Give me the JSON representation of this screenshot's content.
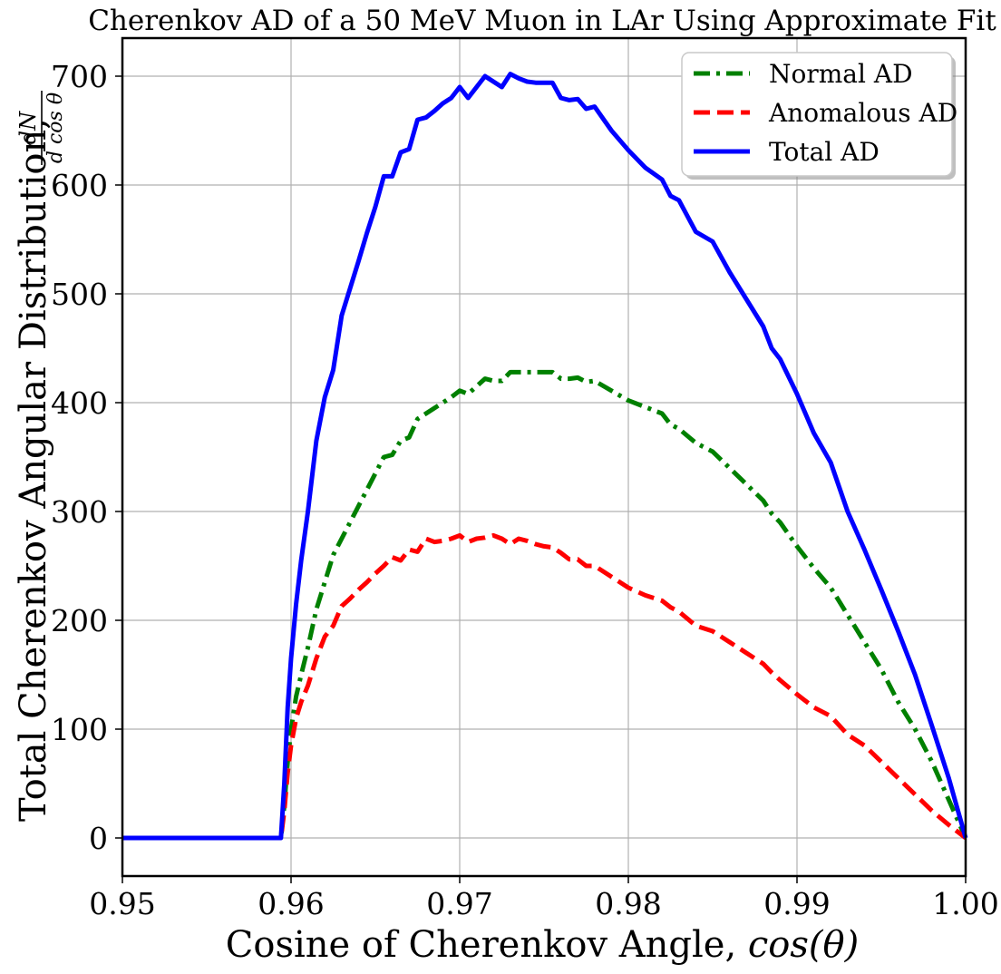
{
  "chart_data": {
    "type": "line",
    "title": "Cherenkov AD of a 50 MeV Muon in LAr Using Approximate Fit",
    "xlabel_text": "Cosine of Cherenkov Angle, ",
    "xlabel_math": "cos(θ)",
    "ylabel_text": "Total Cherenkov Angular Distribution, ",
    "ylabel_frac_num": "dN",
    "ylabel_frac_den": "d cos θ",
    "xlim": [
      0.95,
      1.0
    ],
    "ylim": [
      -35,
      735
    ],
    "xticks": [
      0.95,
      0.96,
      0.97,
      0.98,
      0.99,
      1.0
    ],
    "xtick_labels": [
      "0.95",
      "0.96",
      "0.97",
      "0.98",
      "0.99",
      "1.00"
    ],
    "yticks": [
      0,
      100,
      200,
      300,
      400,
      500,
      600,
      700
    ],
    "ytick_labels": [
      "0",
      "100",
      "200",
      "300",
      "400",
      "500",
      "600",
      "700"
    ],
    "grid": true,
    "legend_position": "top-right",
    "series": [
      {
        "name": "Normal AD",
        "color": "#008000",
        "style": "dashdot",
        "x": [
          0.95,
          0.9594,
          0.9596,
          0.9598,
          0.96,
          0.9603,
          0.9606,
          0.961,
          0.9615,
          0.962,
          0.9625,
          0.963,
          0.9635,
          0.964,
          0.9645,
          0.965,
          0.9655,
          0.966,
          0.9665,
          0.967,
          0.9675,
          0.968,
          0.9685,
          0.969,
          0.9695,
          0.97,
          0.9705,
          0.971,
          0.9715,
          0.972,
          0.9725,
          0.973,
          0.9735,
          0.974,
          0.9745,
          0.975,
          0.9755,
          0.976,
          0.9765,
          0.977,
          0.9775,
          0.978,
          0.979,
          0.98,
          0.981,
          0.982,
          0.9825,
          0.983,
          0.984,
          0.985,
          0.986,
          0.987,
          0.988,
          0.9885,
          0.989,
          0.99,
          0.991,
          0.992,
          0.993,
          0.994,
          0.995,
          0.996,
          0.997,
          0.998,
          0.999,
          1.0
        ],
        "y": [
          0,
          0,
          30,
          70,
          100,
          130,
          150,
          175,
          210,
          235,
          260,
          275,
          290,
          305,
          320,
          335,
          350,
          352,
          365,
          368,
          385,
          390,
          395,
          400,
          405,
          411,
          408,
          415,
          422,
          420,
          420,
          428,
          428,
          428,
          428,
          428,
          428,
          422,
          422,
          423,
          419,
          420,
          411,
          402,
          396,
          390,
          380,
          376,
          363,
          355,
          340,
          325,
          310,
          298,
          290,
          268,
          248,
          230,
          205,
          180,
          155,
          125,
          100,
          70,
          35,
          0
        ]
      },
      {
        "name": "Anomalous AD",
        "color": "#ff0000",
        "style": "dashed",
        "x": [
          0.95,
          0.9594,
          0.9596,
          0.9598,
          0.96,
          0.9603,
          0.9606,
          0.961,
          0.9615,
          0.962,
          0.9625,
          0.963,
          0.9635,
          0.964,
          0.9645,
          0.965,
          0.9655,
          0.966,
          0.9665,
          0.967,
          0.9675,
          0.968,
          0.9685,
          0.969,
          0.9695,
          0.97,
          0.9705,
          0.971,
          0.9715,
          0.972,
          0.9725,
          0.973,
          0.9735,
          0.974,
          0.9745,
          0.975,
          0.9755,
          0.976,
          0.9765,
          0.977,
          0.9775,
          0.978,
          0.979,
          0.98,
          0.981,
          0.982,
          0.9825,
          0.983,
          0.984,
          0.985,
          0.986,
          0.987,
          0.988,
          0.9885,
          0.989,
          0.99,
          0.991,
          0.992,
          0.993,
          0.994,
          0.995,
          0.996,
          0.997,
          0.998,
          0.999,
          1.0
        ],
        "y": [
          0,
          0,
          25,
          60,
          85,
          110,
          125,
          140,
          165,
          185,
          195,
          213,
          220,
          228,
          235,
          243,
          250,
          258,
          255,
          265,
          263,
          275,
          272,
          273,
          275,
          278,
          272,
          275,
          276,
          278,
          275,
          270,
          275,
          273,
          270,
          268,
          267,
          262,
          256,
          256,
          250,
          250,
          240,
          230,
          223,
          218,
          212,
          208,
          195,
          190,
          180,
          170,
          160,
          152,
          145,
          132,
          120,
          112,
          95,
          85,
          70,
          55,
          40,
          25,
          12,
          0
        ]
      },
      {
        "name": "Total AD",
        "color": "#0000ff",
        "style": "solid",
        "x": [
          0.95,
          0.9594,
          0.9596,
          0.9598,
          0.96,
          0.9603,
          0.9606,
          0.961,
          0.9615,
          0.962,
          0.9625,
          0.963,
          0.9635,
          0.964,
          0.9645,
          0.965,
          0.9655,
          0.966,
          0.9665,
          0.967,
          0.9675,
          0.968,
          0.9685,
          0.969,
          0.9695,
          0.97,
          0.9705,
          0.971,
          0.9715,
          0.972,
          0.9725,
          0.973,
          0.9735,
          0.974,
          0.9745,
          0.975,
          0.9755,
          0.976,
          0.9765,
          0.977,
          0.9775,
          0.978,
          0.979,
          0.98,
          0.981,
          0.982,
          0.9825,
          0.983,
          0.984,
          0.985,
          0.986,
          0.987,
          0.988,
          0.9885,
          0.989,
          0.99,
          0.991,
          0.992,
          0.993,
          0.994,
          0.995,
          0.996,
          0.997,
          0.998,
          0.999,
          1.0
        ],
        "y": [
          0,
          0,
          50,
          120,
          165,
          215,
          255,
          300,
          365,
          405,
          430,
          480,
          505,
          530,
          556,
          580,
          608,
          608,
          630,
          633,
          660,
          662,
          668,
          675,
          680,
          690,
          680,
          690,
          700,
          695,
          690,
          702,
          698,
          695,
          694,
          694,
          694,
          680,
          678,
          679,
          670,
          672,
          650,
          632,
          616,
          605,
          590,
          586,
          557,
          548,
          520,
          495,
          470,
          450,
          440,
          408,
          372,
          345,
          300,
          265,
          228,
          190,
          150,
          103,
          55,
          0
        ]
      }
    ]
  }
}
